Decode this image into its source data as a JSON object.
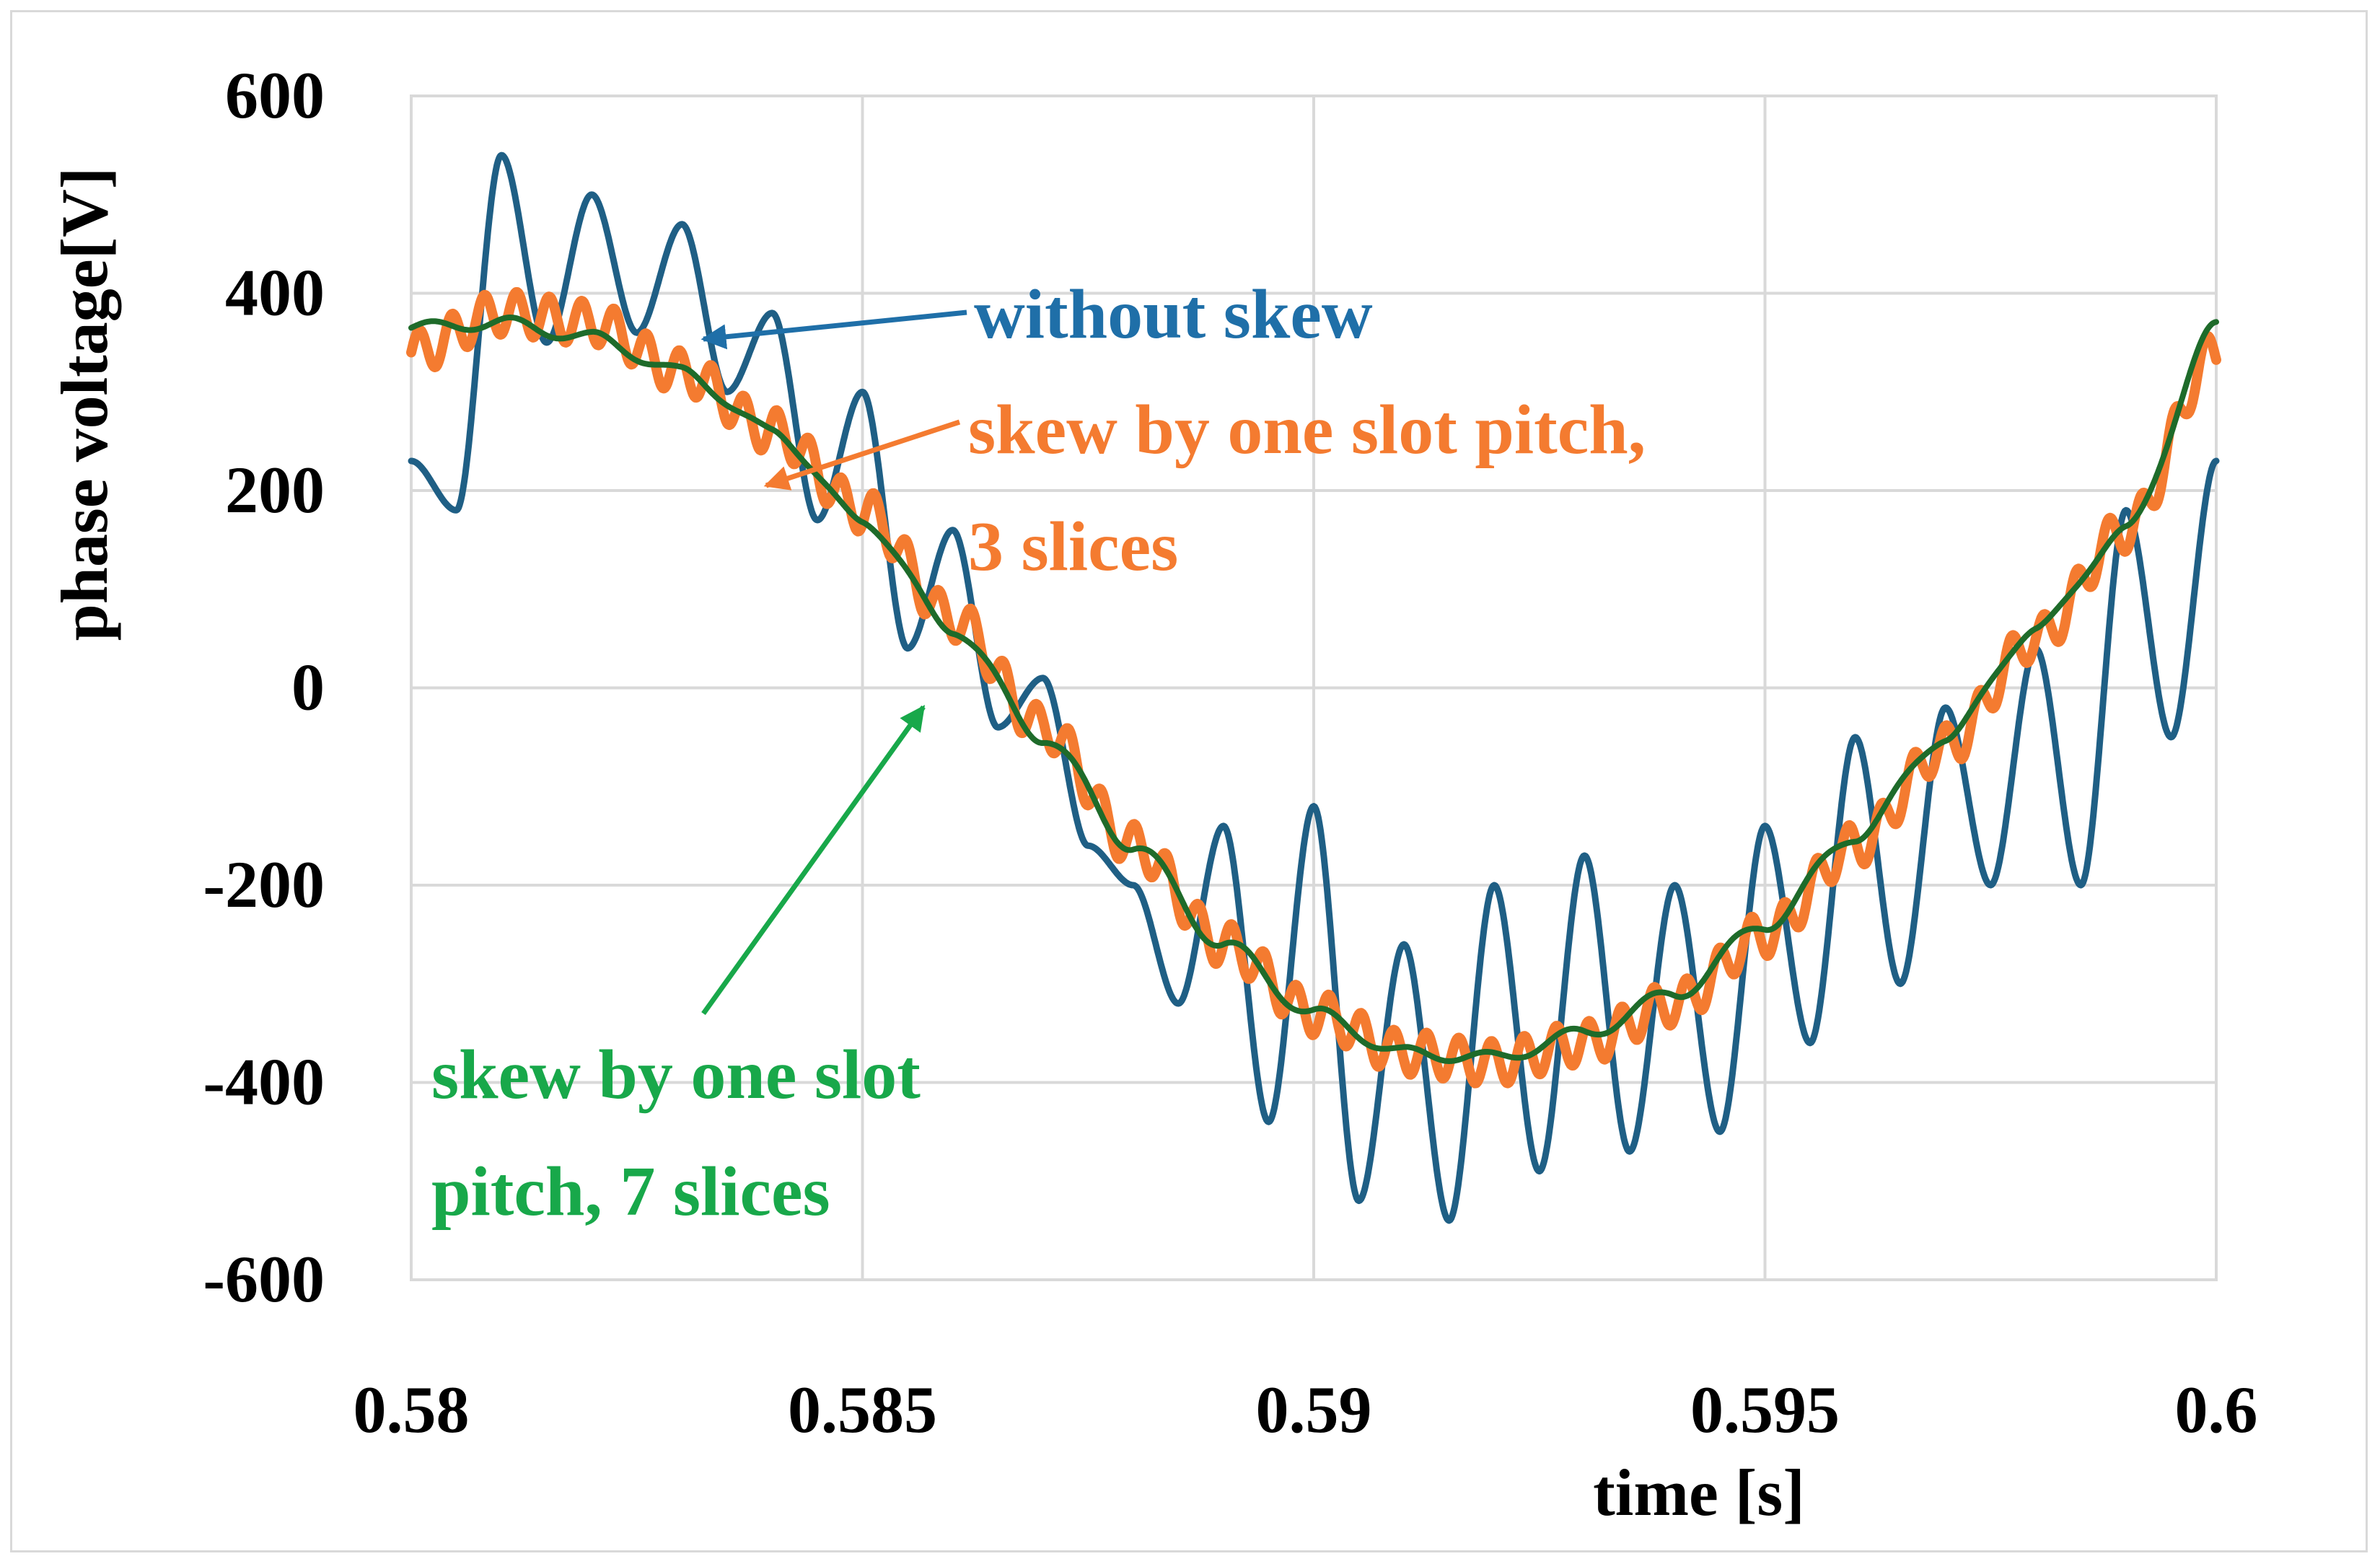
{
  "chart_data": {
    "type": "line",
    "title": "",
    "xlabel": "time [s]",
    "ylabel": "phase voltage[V]",
    "xlim": [
      0.58,
      0.6
    ],
    "ylim": [
      -600,
      600
    ],
    "xticks": [
      0.58,
      0.585,
      0.59,
      0.595,
      0.6
    ],
    "xtick_labels": [
      "0.58",
      "0.585",
      "0.59",
      "0.595",
      "0.6"
    ],
    "yticks": [
      600,
      400,
      200,
      0,
      -200,
      -400,
      -600
    ],
    "ytick_labels": [
      "600",
      "400",
      "200",
      "0",
      "-200",
      "-400",
      "-600"
    ],
    "grid": true,
    "legend": "none (inline annotations)",
    "fundamental_period_s": 0.02,
    "series": [
      {
        "name": "without skew",
        "color": "#1f5f85",
        "x": [
          0.58,
          0.5805,
          0.581,
          0.5815,
          0.582,
          0.5825,
          0.583,
          0.5835,
          0.584,
          0.5845,
          0.585,
          0.5855,
          0.586,
          0.5865,
          0.587,
          0.5875,
          0.588,
          0.5885,
          0.589,
          0.5895,
          0.59,
          0.5905,
          0.591,
          0.5915,
          0.592,
          0.5925,
          0.593,
          0.5935,
          0.594,
          0.5945,
          0.595,
          0.5955,
          0.596,
          0.5965,
          0.597,
          0.5975,
          0.598,
          0.5985,
          0.599,
          0.5995,
          0.6
        ],
        "values": [
          230,
          180,
          540,
          350,
          500,
          360,
          470,
          300,
          380,
          170,
          300,
          40,
          160,
          -40,
          10,
          -160,
          -200,
          -320,
          -140,
          -440,
          -120,
          -520,
          -260,
          -540,
          -200,
          -490,
          -170,
          -470,
          -200,
          -450,
          -140,
          -360,
          -50,
          -300,
          -20,
          -200,
          40,
          -200,
          180,
          -50,
          230
        ]
      },
      {
        "name": "skew by one slot pitch, 3 slices",
        "color": "#f47b30",
        "x": [
          0.58,
          0.581,
          0.582,
          0.583,
          0.584,
          0.585,
          0.586,
          0.587,
          0.588,
          0.589,
          0.59,
          0.591,
          0.592,
          0.593,
          0.594,
          0.595,
          0.596,
          0.597,
          0.598,
          0.599,
          0.6
        ],
        "values": [
          340,
          380,
          370,
          320,
          260,
          180,
          70,
          -40,
          -160,
          -260,
          -330,
          -370,
          -380,
          -360,
          -320,
          -250,
          -160,
          -60,
          50,
          160,
          340
        ]
      },
      {
        "name": "skew by one slot pitch, 7 slices",
        "color": "#1e6b2a",
        "x": [
          0.58,
          0.581,
          0.582,
          0.583,
          0.584,
          0.585,
          0.586,
          0.587,
          0.588,
          0.589,
          0.59,
          0.591,
          0.592,
          0.593,
          0.594,
          0.595,
          0.596,
          0.597,
          0.598,
          0.599,
          0.6
        ],
        "values": [
          365,
          370,
          355,
          320,
          260,
          170,
          60,
          -50,
          -160,
          -260,
          -330,
          -370,
          -375,
          -350,
          -310,
          -240,
          -150,
          -50,
          60,
          160,
          365
        ]
      }
    ],
    "annotations": [
      {
        "text": "without skew",
        "color": "#1f6fa8",
        "points_to_series": "without skew"
      },
      {
        "text": "skew by one slot pitch,",
        "color": "#f47b30",
        "points_to_series": "skew by one slot pitch, 3 slices"
      },
      {
        "text": "3 slices",
        "color": "#f47b30",
        "points_to_series": "skew by one slot pitch, 3 slices"
      },
      {
        "text": "skew by one slot",
        "color": "#18a84a",
        "points_to_series": "skew by one slot pitch, 7 slices"
      },
      {
        "text": "pitch, 7 slices",
        "color": "#18a84a",
        "points_to_series": "skew by one slot pitch, 7 slices"
      }
    ]
  }
}
